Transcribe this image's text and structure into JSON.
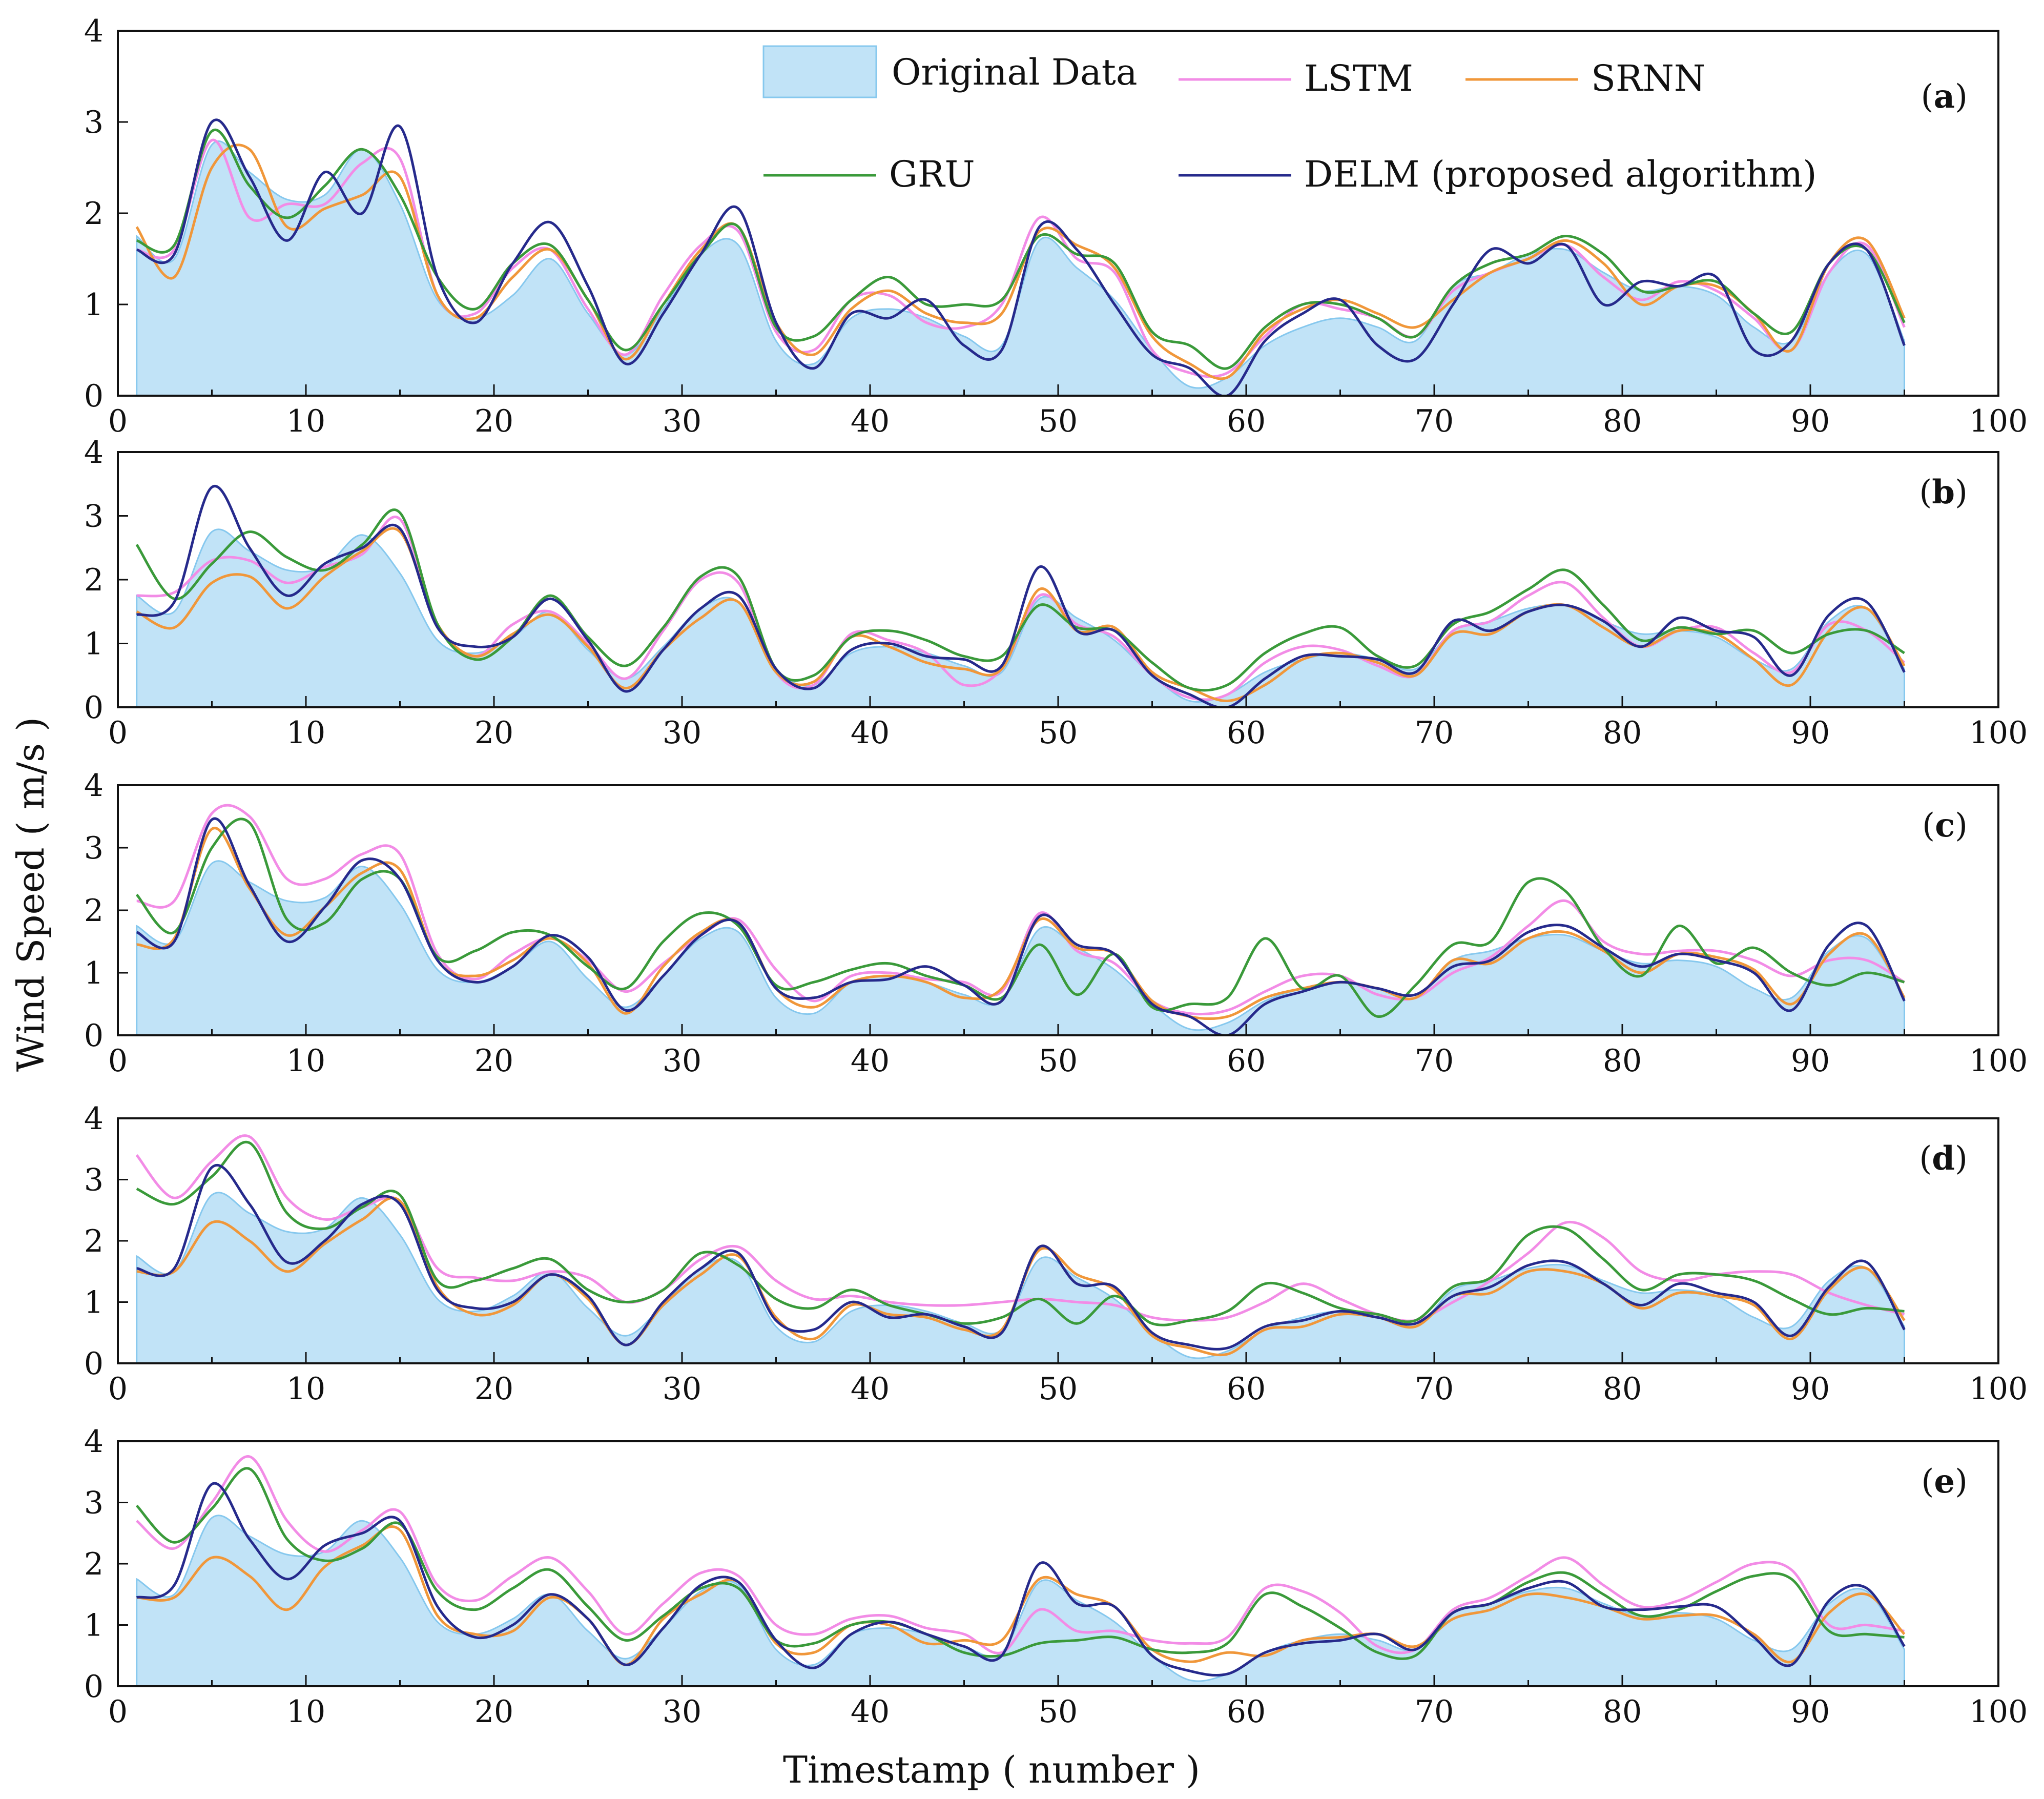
{
  "chart_data": {
    "type": "line",
    "ylabel": "Wind Speed ( m/s )",
    "xlabel": "Timestamp ( number )",
    "xlim": [
      0,
      100
    ],
    "ylim": [
      0,
      4
    ],
    "xticks": [
      0,
      10,
      20,
      30,
      40,
      50,
      60,
      70,
      80,
      90,
      100
    ],
    "yticks": [
      0,
      1,
      2,
      3,
      4
    ],
    "legend_position": "top",
    "legend": [
      {
        "key": "original",
        "name": "Original Data",
        "style": "area",
        "color": "#9fd4f2"
      },
      {
        "key": "lstm",
        "name": "LSTM",
        "style": "line",
        "color": "#f28ce6"
      },
      {
        "key": "srnn",
        "name": "SRNN",
        "style": "line",
        "color": "#f0973a"
      },
      {
        "key": "gru",
        "name": "GRU",
        "style": "line",
        "color": "#3a9a3a"
      },
      {
        "key": "delm",
        "name": "DELM (proposed algorithm)",
        "style": "line",
        "color": "#262a8c"
      }
    ],
    "x": [
      1,
      3,
      5,
      7,
      9,
      11,
      13,
      15,
      17,
      19,
      21,
      23,
      25,
      27,
      29,
      31,
      33,
      35,
      37,
      39,
      41,
      43,
      45,
      47,
      49,
      51,
      53,
      55,
      57,
      59,
      61,
      63,
      65,
      67,
      69,
      71,
      73,
      75,
      77,
      79,
      81,
      83,
      85,
      87,
      89,
      91,
      93,
      95
    ],
    "original": [
      1.75,
      1.5,
      2.75,
      2.45,
      2.15,
      2.2,
      2.7,
      2.1,
      1.05,
      0.85,
      1.1,
      1.5,
      0.9,
      0.45,
      0.95,
      1.55,
      1.65,
      0.6,
      0.35,
      0.85,
      0.95,
      0.85,
      0.65,
      0.55,
      1.7,
      1.4,
      1.05,
      0.5,
      0.1,
      0.2,
      0.55,
      0.75,
      0.85,
      0.75,
      0.6,
      1.2,
      1.35,
      1.55,
      1.6,
      1.35,
      1.15,
      1.2,
      1.1,
      0.75,
      0.6,
      1.35,
      1.55,
      0.6
    ],
    "panels": [
      {
        "label": "a",
        "lstm": [
          1.6,
          1.6,
          2.8,
          1.95,
          2.1,
          2.1,
          2.55,
          2.6,
          1.1,
          0.9,
          1.4,
          1.6,
          0.95,
          0.45,
          1.1,
          1.65,
          1.8,
          0.7,
          0.5,
          1.05,
          1.1,
          0.8,
          0.75,
          1.0,
          1.95,
          1.5,
          1.35,
          0.5,
          0.25,
          0.25,
          0.65,
          1.0,
          0.95,
          0.85,
          0.65,
          1.15,
          1.35,
          1.5,
          1.65,
          1.3,
          1.05,
          1.25,
          1.15,
          0.85,
          0.5,
          1.35,
          1.65,
          0.75
        ],
        "srnn": [
          1.85,
          1.3,
          2.5,
          2.7,
          1.85,
          2.05,
          2.2,
          2.4,
          1.1,
          0.85,
          1.3,
          1.6,
          1.05,
          0.4,
          1.0,
          1.6,
          1.85,
          0.8,
          0.45,
          0.95,
          1.15,
          0.9,
          0.8,
          0.9,
          1.8,
          1.65,
          1.4,
          0.65,
          0.35,
          0.2,
          0.7,
          0.95,
          1.05,
          0.9,
          0.75,
          1.05,
          1.35,
          1.5,
          1.7,
          1.45,
          1.0,
          1.2,
          1.2,
          0.9,
          0.5,
          1.45,
          1.7,
          0.85
        ],
        "gru": [
          1.7,
          1.65,
          2.9,
          2.3,
          1.95,
          2.3,
          2.7,
          2.2,
          1.3,
          0.95,
          1.45,
          1.65,
          1.05,
          0.5,
          1.0,
          1.55,
          1.85,
          0.75,
          0.65,
          1.05,
          1.3,
          1.0,
          1.0,
          1.05,
          1.75,
          1.55,
          1.45,
          0.7,
          0.55,
          0.3,
          0.75,
          1.0,
          1.0,
          0.85,
          0.65,
          1.2,
          1.45,
          1.55,
          1.75,
          1.55,
          1.15,
          1.2,
          1.25,
          0.9,
          0.7,
          1.45,
          1.6,
          0.8
        ],
        "delm": [
          1.6,
          1.55,
          3.0,
          2.4,
          1.7,
          2.45,
          2.0,
          2.95,
          1.3,
          0.8,
          1.45,
          1.9,
          1.2,
          0.35,
          0.9,
          1.55,
          2.05,
          0.8,
          0.3,
          0.9,
          0.85,
          1.05,
          0.55,
          0.5,
          1.85,
          1.6,
          1.0,
          0.45,
          0.3,
          0.0,
          0.6,
          0.9,
          1.05,
          0.55,
          0.4,
          1.0,
          1.6,
          1.45,
          1.65,
          1.0,
          1.25,
          1.2,
          1.3,
          0.5,
          0.6,
          1.45,
          1.6,
          0.55
        ]
      },
      {
        "label": "b",
        "lstm": [
          1.75,
          1.8,
          2.3,
          2.3,
          1.95,
          2.2,
          2.4,
          2.95,
          1.3,
          0.8,
          1.3,
          1.5,
          1.0,
          0.45,
          1.2,
          2.0,
          1.95,
          0.55,
          0.35,
          1.15,
          1.05,
          0.85,
          0.35,
          0.6,
          1.75,
          1.3,
          1.1,
          0.5,
          0.15,
          0.2,
          0.7,
          0.95,
          0.9,
          0.65,
          0.5,
          1.2,
          1.35,
          1.75,
          1.95,
          1.4,
          0.95,
          1.2,
          1.25,
          0.85,
          0.55,
          1.3,
          1.2,
          0.7
        ],
        "srnn": [
          1.5,
          1.25,
          1.95,
          2.05,
          1.55,
          2.05,
          2.45,
          2.75,
          1.3,
          0.8,
          1.15,
          1.45,
          0.95,
          0.3,
          0.9,
          1.4,
          1.65,
          0.55,
          0.4,
          1.1,
          0.95,
          0.7,
          0.6,
          0.6,
          1.85,
          1.2,
          1.25,
          0.55,
          0.3,
          0.1,
          0.35,
          0.75,
          0.85,
          0.7,
          0.5,
          1.15,
          1.15,
          1.5,
          1.6,
          1.25,
          0.95,
          1.2,
          1.15,
          0.75,
          0.35,
          1.2,
          1.55,
          0.65
        ],
        "gru": [
          2.55,
          1.7,
          2.25,
          2.75,
          2.35,
          2.15,
          2.55,
          3.05,
          1.3,
          0.75,
          1.1,
          1.75,
          1.1,
          0.65,
          1.25,
          2.05,
          2.05,
          0.6,
          0.5,
          1.1,
          1.2,
          1.05,
          0.8,
          0.8,
          1.6,
          1.25,
          1.2,
          0.7,
          0.3,
          0.35,
          0.85,
          1.15,
          1.25,
          0.8,
          0.65,
          1.3,
          1.5,
          1.85,
          2.15,
          1.6,
          1.05,
          1.25,
          1.15,
          1.2,
          0.85,
          1.15,
          1.2,
          0.85
        ],
        "delm": [
          1.45,
          1.65,
          3.45,
          2.5,
          1.75,
          2.25,
          2.5,
          2.8,
          1.25,
          0.95,
          1.1,
          1.7,
          1.05,
          0.25,
          0.9,
          1.55,
          1.75,
          0.6,
          0.3,
          0.9,
          1.0,
          0.8,
          0.75,
          0.65,
          2.2,
          1.2,
          1.2,
          0.5,
          0.2,
          0.0,
          0.45,
          0.8,
          0.8,
          0.75,
          0.55,
          1.35,
          1.2,
          1.5,
          1.6,
          1.35,
          0.95,
          1.4,
          1.2,
          1.1,
          0.5,
          1.45,
          1.65,
          0.55
        ]
      },
      {
        "label": "c",
        "lstm": [
          2.15,
          2.15,
          3.55,
          3.5,
          2.5,
          2.5,
          2.9,
          2.9,
          1.3,
          0.9,
          1.3,
          1.55,
          1.2,
          0.7,
          1.15,
          1.6,
          1.85,
          1.05,
          0.55,
          0.95,
          1.0,
          0.9,
          0.85,
          0.7,
          1.95,
          1.35,
          1.15,
          0.55,
          0.35,
          0.4,
          0.7,
          0.95,
          0.95,
          0.65,
          0.6,
          1.0,
          1.25,
          1.75,
          2.15,
          1.5,
          1.3,
          1.35,
          1.35,
          1.2,
          0.95,
          1.2,
          1.2,
          0.85
        ],
        "srnn": [
          1.45,
          1.55,
          3.3,
          2.35,
          1.6,
          2.05,
          2.6,
          2.65,
          1.2,
          0.95,
          1.2,
          1.55,
          1.15,
          0.35,
          1.1,
          1.65,
          1.8,
          0.75,
          0.45,
          0.85,
          0.95,
          0.85,
          0.6,
          0.75,
          1.85,
          1.4,
          1.3,
          0.55,
          0.3,
          0.3,
          0.6,
          0.75,
          0.85,
          0.75,
          0.6,
          1.2,
          1.15,
          1.55,
          1.65,
          1.35,
          1.0,
          1.3,
          1.25,
          1.05,
          0.5,
          1.3,
          1.6,
          0.6
        ],
        "gru": [
          2.25,
          1.65,
          3.0,
          3.4,
          1.85,
          1.8,
          2.5,
          2.5,
          1.25,
          1.35,
          1.65,
          1.6,
          1.1,
          0.75,
          1.5,
          1.95,
          1.75,
          0.8,
          0.85,
          1.05,
          1.15,
          0.95,
          0.8,
          0.6,
          1.45,
          0.65,
          1.3,
          0.45,
          0.5,
          0.6,
          1.55,
          0.75,
          0.95,
          0.3,
          0.8,
          1.45,
          1.5,
          2.45,
          2.3,
          1.4,
          0.95,
          1.75,
          1.15,
          1.4,
          1.0,
          0.8,
          1.0,
          0.85
        ],
        "delm": [
          1.65,
          1.5,
          3.45,
          2.4,
          1.5,
          2.05,
          2.8,
          2.5,
          1.2,
          0.85,
          1.1,
          1.6,
          1.25,
          0.4,
          0.95,
          1.6,
          1.8,
          0.75,
          0.6,
          0.85,
          0.9,
          1.1,
          0.8,
          0.55,
          1.9,
          1.45,
          1.3,
          0.5,
          0.3,
          0.0,
          0.5,
          0.7,
          0.85,
          0.75,
          0.65,
          1.1,
          1.2,
          1.65,
          1.75,
          1.4,
          1.1,
          1.3,
          1.2,
          1.0,
          0.4,
          1.45,
          1.75,
          0.55
        ]
      },
      {
        "label": "d",
        "lstm": [
          3.4,
          2.7,
          3.3,
          3.7,
          2.7,
          2.35,
          2.55,
          2.65,
          1.55,
          1.4,
          1.35,
          1.5,
          1.4,
          1.0,
          1.2,
          1.7,
          1.9,
          1.35,
          1.05,
          1.1,
          1.0,
          0.95,
          0.95,
          1.0,
          1.05,
          1.0,
          0.95,
          0.75,
          0.7,
          0.75,
          1.0,
          1.3,
          1.05,
          0.8,
          0.7,
          1.0,
          1.35,
          1.8,
          2.3,
          2.05,
          1.5,
          1.35,
          1.45,
          1.5,
          1.45,
          1.15,
          0.95,
          0.8
        ],
        "srnn": [
          1.5,
          1.5,
          2.3,
          2.0,
          1.5,
          1.95,
          2.35,
          2.65,
          1.25,
          0.8,
          0.95,
          1.45,
          1.05,
          0.3,
          0.95,
          1.45,
          1.75,
          0.75,
          0.4,
          0.95,
          0.8,
          0.75,
          0.55,
          0.55,
          1.85,
          1.45,
          1.2,
          0.45,
          0.25,
          0.15,
          0.55,
          0.6,
          0.8,
          0.75,
          0.6,
          1.1,
          1.15,
          1.5,
          1.5,
          1.3,
          0.9,
          1.15,
          1.1,
          0.95,
          0.4,
          1.2,
          1.55,
          0.7
        ],
        "gru": [
          2.85,
          2.6,
          3.05,
          3.6,
          2.45,
          2.2,
          2.55,
          2.75,
          1.35,
          1.35,
          1.55,
          1.7,
          1.2,
          1.0,
          1.2,
          1.8,
          1.6,
          1.05,
          0.9,
          1.2,
          0.95,
          0.8,
          0.65,
          0.75,
          1.05,
          0.65,
          1.1,
          0.65,
          0.7,
          0.85,
          1.3,
          1.15,
          0.9,
          0.8,
          0.7,
          1.25,
          1.4,
          2.1,
          2.2,
          1.7,
          1.2,
          1.45,
          1.45,
          1.35,
          1.05,
          0.8,
          0.9,
          0.85
        ],
        "delm": [
          1.55,
          1.55,
          3.2,
          2.6,
          1.65,
          2.0,
          2.6,
          2.6,
          1.2,
          0.9,
          1.0,
          1.45,
          1.1,
          0.3,
          1.0,
          1.55,
          1.8,
          0.7,
          0.55,
          1.0,
          0.75,
          0.8,
          0.6,
          0.5,
          1.9,
          1.3,
          1.25,
          0.5,
          0.3,
          0.25,
          0.6,
          0.7,
          0.85,
          0.75,
          0.65,
          1.1,
          1.25,
          1.6,
          1.65,
          1.3,
          0.95,
          1.3,
          1.15,
          1.0,
          0.45,
          1.25,
          1.65,
          0.55
        ]
      },
      {
        "label": "e",
        "lstm": [
          2.7,
          2.25,
          3.0,
          3.75,
          2.7,
          2.2,
          2.55,
          2.85,
          1.65,
          1.4,
          1.8,
          2.1,
          1.55,
          0.85,
          1.35,
          1.85,
          1.8,
          1.0,
          0.85,
          1.1,
          1.15,
          0.95,
          0.85,
          0.55,
          1.25,
          0.9,
          0.9,
          0.75,
          0.7,
          0.8,
          1.6,
          1.55,
          1.2,
          0.65,
          0.6,
          1.25,
          1.45,
          1.8,
          2.1,
          1.65,
          1.3,
          1.4,
          1.7,
          2.0,
          1.9,
          1.0,
          1.0,
          0.9
        ],
        "srnn": [
          1.45,
          1.45,
          2.1,
          1.8,
          1.25,
          1.95,
          2.3,
          2.55,
          1.15,
          0.85,
          0.9,
          1.45,
          1.1,
          0.35,
          1.1,
          1.5,
          1.7,
          0.7,
          0.55,
          1.0,
          1.0,
          0.7,
          0.75,
          0.75,
          1.75,
          1.5,
          1.3,
          0.6,
          0.4,
          0.55,
          0.5,
          0.75,
          0.8,
          0.85,
          0.65,
          1.1,
          1.25,
          1.5,
          1.45,
          1.3,
          1.1,
          1.15,
          1.15,
          0.85,
          0.4,
          1.2,
          1.5,
          0.85
        ],
        "gru": [
          2.95,
          2.35,
          2.9,
          3.55,
          2.4,
          2.05,
          2.25,
          2.65,
          1.55,
          1.25,
          1.6,
          1.9,
          1.3,
          0.75,
          1.15,
          1.6,
          1.6,
          0.75,
          0.7,
          1.0,
          1.05,
          0.85,
          0.55,
          0.5,
          0.7,
          0.75,
          0.8,
          0.6,
          0.55,
          0.7,
          1.5,
          1.3,
          0.95,
          0.55,
          0.5,
          1.2,
          1.35,
          1.7,
          1.85,
          1.5,
          1.15,
          1.25,
          1.55,
          1.8,
          1.75,
          0.9,
          0.85,
          0.8
        ],
        "delm": [
          1.45,
          1.65,
          3.3,
          2.4,
          1.75,
          2.3,
          2.5,
          2.7,
          1.3,
          0.8,
          1.0,
          1.5,
          1.1,
          0.35,
          0.95,
          1.65,
          1.7,
          0.75,
          0.3,
          0.85,
          1.05,
          0.85,
          0.65,
          0.5,
          2.0,
          1.35,
          1.3,
          0.5,
          0.25,
          0.2,
          0.55,
          0.7,
          0.75,
          0.85,
          0.6,
          1.2,
          1.35,
          1.6,
          1.7,
          1.3,
          1.25,
          1.3,
          1.3,
          0.8,
          0.35,
          1.4,
          1.6,
          0.65
        ]
      }
    ]
  }
}
